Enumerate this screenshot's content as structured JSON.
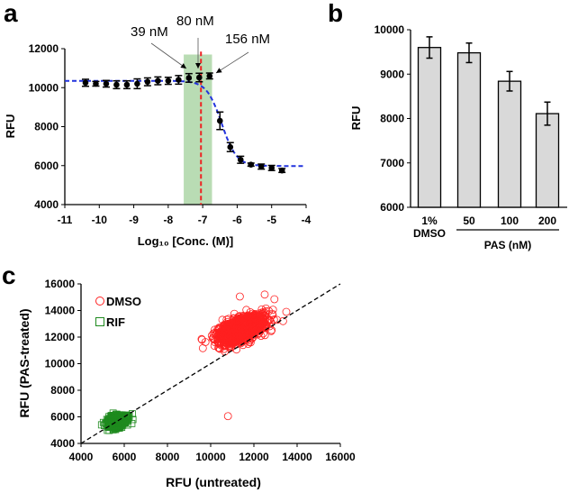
{
  "chart_data": [
    {
      "panel": "a",
      "type": "scatter",
      "xlabel": "Log₁₀ [Conc. (M)]",
      "ylabel": "RFU",
      "xlim": [
        -11,
        -4
      ],
      "ylim": [
        4000,
        12000
      ],
      "xticks": [
        -11,
        -10,
        -9,
        -8,
        -7,
        -6,
        -5,
        -4
      ],
      "yticks": [
        4000,
        6000,
        8000,
        10000,
        12000
      ],
      "points": [
        {
          "x": -10.4,
          "y": 10250,
          "err": 180
        },
        {
          "x": -10.1,
          "y": 10200,
          "err": 120
        },
        {
          "x": -9.8,
          "y": 10200,
          "err": 170
        },
        {
          "x": -9.5,
          "y": 10150,
          "err": 200
        },
        {
          "x": -9.2,
          "y": 10150,
          "err": 200
        },
        {
          "x": -8.9,
          "y": 10200,
          "err": 250
        },
        {
          "x": -8.6,
          "y": 10300,
          "err": 200
        },
        {
          "x": -8.3,
          "y": 10350,
          "err": 200
        },
        {
          "x": -8.0,
          "y": 10350,
          "err": 180
        },
        {
          "x": -7.7,
          "y": 10400,
          "err": 220
        },
        {
          "x": -7.4,
          "y": 10500,
          "err": 220
        },
        {
          "x": -7.1,
          "y": 10520,
          "err": 220
        },
        {
          "x": -6.8,
          "y": 10600,
          "err": 150
        },
        {
          "x": -6.5,
          "y": 8300,
          "err": 450
        },
        {
          "x": -6.2,
          "y": 6950,
          "err": 230
        },
        {
          "x": -5.9,
          "y": 6300,
          "err": 180
        },
        {
          "x": -5.6,
          "y": 6050,
          "err": 80
        },
        {
          "x": -5.3,
          "y": 5950,
          "err": 130
        },
        {
          "x": -5.0,
          "y": 5880,
          "err": 130
        },
        {
          "x": -4.7,
          "y": 5750,
          "err": 100
        }
      ],
      "fit": {
        "top": 10350,
        "bottom": 5980,
        "logIC50": -6.45,
        "hill": 2.0
      },
      "highlight_band": [
        -7.55,
        -6.73
      ],
      "vline": -7.05,
      "annotations": [
        {
          "text": "39 nM",
          "x": -7.4
        },
        {
          "text": "80 nM",
          "x": -7.1
        },
        {
          "text": "156 nM",
          "x": -6.8
        }
      ],
      "colors": {
        "points": "#000000",
        "fit": "#2233dd",
        "vline": "#ee2222",
        "band": "#b9dcb4"
      }
    },
    {
      "panel": "b",
      "type": "bar",
      "ylabel": "RFU",
      "ylim": [
        6000,
        10000
      ],
      "yticks": [
        6000,
        7000,
        8000,
        9000,
        10000
      ],
      "categories": [
        "1%",
        "50",
        "100",
        "200"
      ],
      "category_sublabel": "DMSO",
      "group_label": "PAS (nM)",
      "values": [
        9600,
        9480,
        8840,
        8110
      ],
      "errors": [
        240,
        220,
        220,
        260
      ],
      "colors": {
        "bar": "#d9d9d9"
      }
    },
    {
      "panel": "c",
      "type": "scatter",
      "xlabel": "RFU (untreated)",
      "ylabel": "RFU (PAS-treated)",
      "xlim": [
        4000,
        16000
      ],
      "ylim": [
        4000,
        16000
      ],
      "xticks": [
        4000,
        6000,
        8000,
        10000,
        12000,
        14000,
        16000
      ],
      "yticks": [
        4000,
        6000,
        8000,
        10000,
        12000,
        14000,
        16000
      ],
      "reference_line": "y = x",
      "series": [
        {
          "name": "DMSO",
          "marker": "circle",
          "color": "#ff2020",
          "cluster": {
            "center": [
              11400,
              12600
            ],
            "sd_major": 650,
            "sd_minor": 330,
            "n": 1400
          },
          "outliers": [
            [
              10800,
              6050
            ],
            [
              13500,
              13900
            ],
            [
              13350,
              13200
            ],
            [
              9600,
              11800
            ],
            [
              12500,
              15200
            ],
            [
              11350,
              15050
            ],
            [
              12800,
              12450
            ],
            [
              12950,
              14850
            ]
          ]
        },
        {
          "name": "RIF",
          "marker": "square",
          "color": "#1e8a1e",
          "cluster": {
            "center": [
              5650,
              5650
            ],
            "sd_major": 260,
            "sd_minor": 170,
            "n": 500
          },
          "outliers": [
            [
              6400,
              5800
            ],
            [
              6350,
              5500
            ],
            [
              4950,
              5400
            ]
          ]
        }
      ]
    }
  ]
}
